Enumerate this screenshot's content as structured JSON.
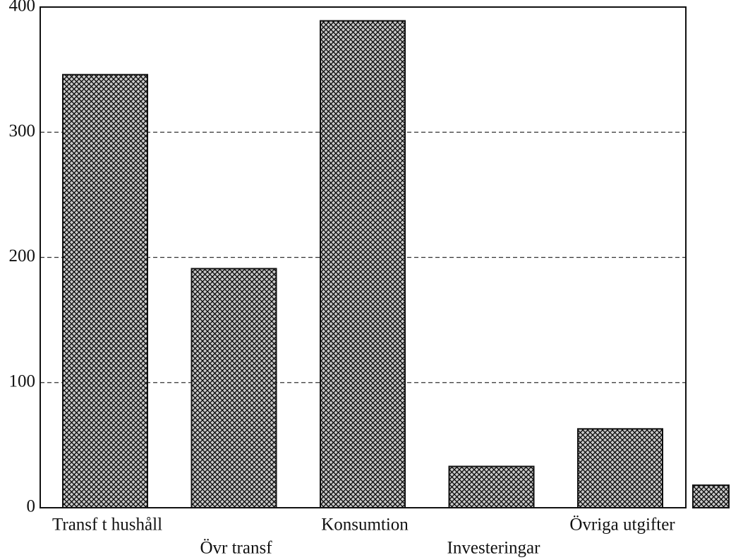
{
  "chart_data": {
    "type": "bar",
    "categories": [
      "Transf t hushåll",
      "Övr transf",
      "Konsumtion",
      "Investeringar",
      "Övriga utgifter",
      null
    ],
    "values": [
      346,
      191,
      389,
      33,
      63,
      18
    ],
    "color": "#000000",
    "ylim": [
      0,
      400
    ],
    "yticks": [
      0,
      100,
      200,
      300,
      400
    ],
    "grid": true
  }
}
